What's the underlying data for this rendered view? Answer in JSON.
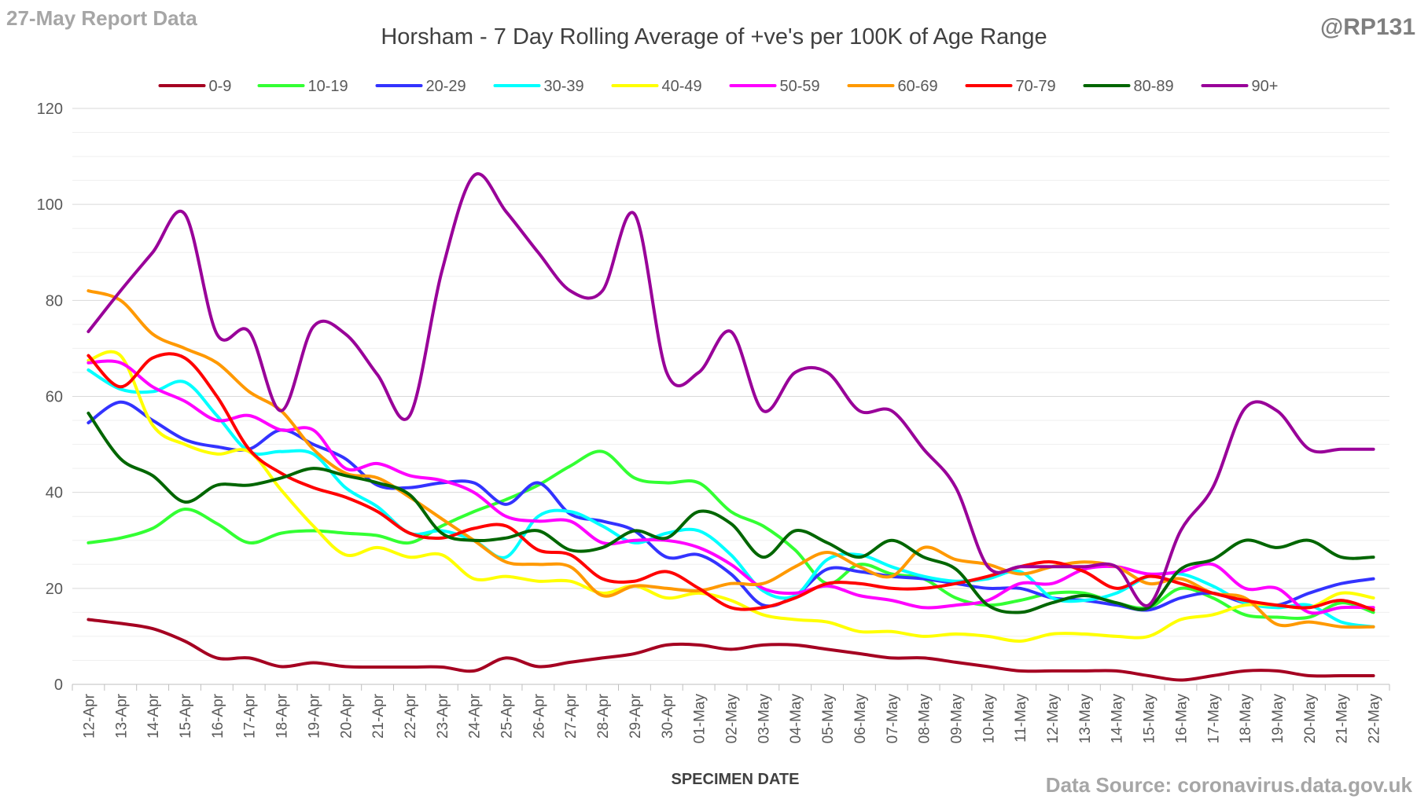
{
  "header": {
    "report_date": "27-May Report Data",
    "handle": "@RP131"
  },
  "footer": {
    "source": "Data Source: coronavirus.data.gov.uk"
  },
  "chart_data": {
    "type": "line",
    "title": "Horsham - 7 Day Rolling Average of +ve's per 100K of Age Range",
    "xlabel": "SPECIMEN DATE",
    "ylabel": "",
    "ylim": [
      0,
      120
    ],
    "yticks": [
      0,
      20,
      40,
      60,
      80,
      100,
      120
    ],
    "grid": true,
    "legend_position": "top",
    "x": [
      "12-Apr",
      "13-Apr",
      "14-Apr",
      "15-Apr",
      "16-Apr",
      "17-Apr",
      "18-Apr",
      "19-Apr",
      "20-Apr",
      "21-Apr",
      "22-Apr",
      "23-Apr",
      "24-Apr",
      "25-Apr",
      "26-Apr",
      "27-Apr",
      "28-Apr",
      "29-Apr",
      "30-Apr",
      "01-May",
      "02-May",
      "03-May",
      "04-May",
      "05-May",
      "06-May",
      "07-May",
      "08-May",
      "09-May",
      "10-May",
      "11-May",
      "12-May",
      "13-May",
      "14-May",
      "15-May",
      "16-May",
      "17-May",
      "18-May",
      "19-May",
      "20-May",
      "21-May",
      "22-May"
    ],
    "series": [
      {
        "name": "0-9",
        "color": "#a50021",
        "values": [
          13.5,
          12.7,
          11.6,
          9,
          5.5,
          5.5,
          3.7,
          4.5,
          3.7,
          3.6,
          3.6,
          3.6,
          2.8,
          5.5,
          3.7,
          4.6,
          5.5,
          6.4,
          8.2,
          8.2,
          7.3,
          8.2,
          8.2,
          7.3,
          6.4,
          5.5,
          5.5,
          4.6,
          3.7,
          2.8,
          2.8,
          2.8,
          2.8,
          1.8,
          0.9,
          1.8,
          2.8,
          2.8,
          1.8,
          1.8,
          1.8
        ]
      },
      {
        "name": "10-19",
        "color": "#33ff33",
        "values": [
          29.5,
          30.5,
          32.5,
          36.5,
          33.5,
          29.5,
          31.5,
          32,
          31.5,
          31,
          29.5,
          33,
          36,
          38.5,
          41.5,
          45.5,
          48.5,
          43,
          42,
          42,
          36,
          33,
          28,
          21,
          25,
          23,
          22,
          18,
          16.5,
          17.5,
          19,
          19,
          17,
          16,
          20,
          18,
          14.5,
          14,
          14,
          17,
          15
        ]
      },
      {
        "name": "20-29",
        "color": "#3333ff",
        "values": [
          54.5,
          58.8,
          55,
          51,
          49.5,
          49,
          53,
          50,
          47,
          41.5,
          41,
          42,
          42,
          37.5,
          42,
          35.5,
          34,
          32,
          26.5,
          27,
          23,
          16.5,
          18.5,
          24,
          23.5,
          22.5,
          22,
          21,
          20,
          20,
          18,
          17.5,
          16.5,
          15.5,
          18,
          19,
          17,
          16.5,
          19,
          21,
          22
        ]
      },
      {
        "name": "30-39",
        "color": "#00ffff",
        "values": [
          65.5,
          61.5,
          61,
          63,
          56,
          48.5,
          48.5,
          48,
          41,
          37,
          31.5,
          32,
          30,
          26.5,
          35,
          36,
          33,
          29.5,
          31.5,
          32,
          27,
          19.5,
          18.5,
          26,
          27,
          24.5,
          22.5,
          21.5,
          22,
          23.5,
          18,
          17.5,
          19,
          22.5,
          23,
          20.5,
          17,
          16,
          16.5,
          13,
          12
        ]
      },
      {
        "name": "40-49",
        "color": "#ffff00",
        "values": [
          67.5,
          68.5,
          54,
          50,
          48,
          48.5,
          40.5,
          33,
          27,
          28.5,
          26.5,
          27,
          22,
          22.5,
          21.5,
          21.5,
          19,
          20.5,
          18,
          19,
          17.5,
          14.5,
          13.5,
          13,
          11,
          11,
          10,
          10.5,
          10,
          9,
          10.5,
          10.5,
          10,
          10,
          13.5,
          14.5,
          16.5,
          16.5,
          16,
          19,
          18
        ]
      },
      {
        "name": "50-59",
        "color": "#ff00ff",
        "values": [
          67,
          67,
          62,
          59,
          55,
          56,
          53,
          53,
          45,
          46,
          43.5,
          42.5,
          40,
          35,
          34,
          34,
          29.5,
          30,
          30,
          28.5,
          25,
          20,
          19,
          20.5,
          18.5,
          17.5,
          16,
          16.5,
          17.5,
          21,
          21,
          24,
          24.5,
          23,
          23.5,
          25,
          20,
          20,
          15,
          16,
          16
        ]
      },
      {
        "name": "60-69",
        "color": "#ff9900",
        "values": [
          82,
          80,
          73,
          70,
          67,
          61,
          57,
          49,
          44,
          43,
          39,
          34.5,
          30,
          25.5,
          25,
          24.5,
          18.5,
          20.5,
          20,
          19.5,
          21,
          21,
          24.5,
          27.5,
          24.5,
          22.5,
          28.5,
          26,
          25,
          23,
          24.5,
          25.5,
          24.5,
          21,
          22,
          19,
          18,
          12.5,
          13,
          12,
          12
        ]
      },
      {
        "name": "70-79",
        "color": "#ff0000",
        "values": [
          68.5,
          62,
          68,
          68,
          60,
          49,
          44,
          41,
          39,
          36,
          31.5,
          30.5,
          32.5,
          33,
          28,
          27,
          22,
          21.5,
          23.5,
          20,
          16,
          16,
          18,
          21,
          21,
          20,
          20,
          21,
          22.5,
          24.5,
          25.5,
          23.5,
          20,
          22.5,
          21,
          19,
          17.5,
          16.5,
          16,
          17.5,
          15.5
        ]
      },
      {
        "name": "80-89",
        "color": "#006600",
        "values": [
          56.5,
          47,
          43.5,
          38,
          41.5,
          41.5,
          43,
          45,
          43.5,
          42,
          39.5,
          31.5,
          30,
          30.5,
          32,
          28,
          28.5,
          32,
          30.5,
          36,
          33.5,
          26.5,
          32,
          29.5,
          26.5,
          30,
          26.5,
          24,
          16.5,
          15,
          17,
          18.5,
          17,
          16,
          24,
          26,
          30,
          28.5,
          30,
          26.5,
          26.5
        ]
      },
      {
        "name": "90+",
        "color": "#990099",
        "values": [
          73.5,
          82,
          90,
          98,
          73,
          73.5,
          57,
          74.5,
          73,
          64.5,
          56,
          86,
          106,
          98.5,
          90,
          82,
          82,
          98,
          65,
          65,
          73.5,
          57,
          65,
          65,
          57,
          57,
          49,
          41,
          24.5,
          24.5,
          24.5,
          24.5,
          24.5,
          16.5,
          32,
          41,
          57.5,
          57,
          49,
          49,
          49
        ]
      }
    ]
  }
}
